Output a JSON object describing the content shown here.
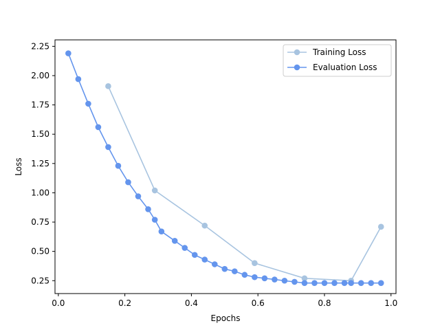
{
  "chart_data": {
    "type": "line",
    "title": "",
    "xlabel": "Epochs",
    "ylabel": "Loss",
    "xlim": [
      -0.01,
      1.015
    ],
    "ylim": [
      0.14,
      2.305
    ],
    "x_ticks": [
      0.0,
      0.2,
      0.4,
      0.6,
      0.8,
      1.0
    ],
    "x_tick_labels": [
      "0.0",
      "0.2",
      "0.4",
      "0.6",
      "0.8",
      "1.0"
    ],
    "y_ticks": [
      0.25,
      0.5,
      0.75,
      1.0,
      1.25,
      1.5,
      1.75,
      2.0,
      2.25
    ],
    "y_tick_labels": [
      "0.25",
      "0.50",
      "0.75",
      "1.00",
      "1.25",
      "1.50",
      "1.75",
      "2.00",
      "2.25"
    ],
    "grid": false,
    "legend_position": "top-right",
    "series": [
      {
        "name": "Training Loss",
        "color": "#a8c4e0",
        "x": [
          0.15,
          0.29,
          0.44,
          0.59,
          0.74,
          0.88,
          0.97
        ],
        "y": [
          1.91,
          1.02,
          0.72,
          0.4,
          0.27,
          0.25,
          0.71
        ]
      },
      {
        "name": "Evaluation Loss",
        "color": "#6495ed",
        "x": [
          0.03,
          0.06,
          0.09,
          0.12,
          0.15,
          0.18,
          0.21,
          0.24,
          0.27,
          0.29,
          0.31,
          0.35,
          0.38,
          0.41,
          0.44,
          0.47,
          0.5,
          0.53,
          0.56,
          0.59,
          0.62,
          0.65,
          0.68,
          0.71,
          0.74,
          0.77,
          0.8,
          0.83,
          0.86,
          0.88,
          0.91,
          0.94,
          0.97
        ],
        "y": [
          2.19,
          1.97,
          1.76,
          1.56,
          1.39,
          1.23,
          1.09,
          0.97,
          0.86,
          0.77,
          0.67,
          0.59,
          0.53,
          0.47,
          0.43,
          0.39,
          0.35,
          0.33,
          0.3,
          0.28,
          0.27,
          0.26,
          0.25,
          0.24,
          0.23,
          0.23,
          0.23,
          0.23,
          0.23,
          0.23,
          0.23,
          0.23,
          0.23
        ]
      }
    ]
  }
}
